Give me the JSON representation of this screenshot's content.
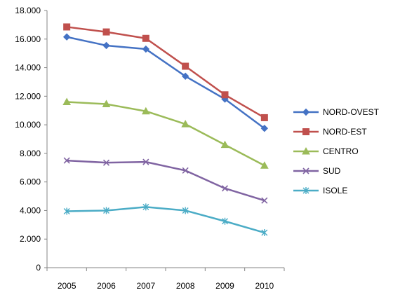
{
  "chart_data": {
    "type": "line",
    "title": "",
    "xlabel": "",
    "ylabel": "",
    "categories": [
      "2005",
      "2006",
      "2007",
      "2008",
      "2009",
      "2010"
    ],
    "ylim": [
      0,
      18000
    ],
    "ytick_step": 2000,
    "ytick_labels": [
      "0",
      "2.000",
      "4.000",
      "6.000",
      "8.000",
      "10.000",
      "12.000",
      "14.000",
      "16.000",
      "18.000"
    ],
    "grid": false,
    "legend_position": "right",
    "series": [
      {
        "name": "NORD-OVEST",
        "color": "#4472C4",
        "marker": "diamond",
        "values": [
          16150,
          15550,
          15300,
          13400,
          11800,
          9750
        ]
      },
      {
        "name": "NORD-EST",
        "color": "#C0504D",
        "marker": "square",
        "values": [
          16850,
          16500,
          16050,
          14100,
          12100,
          10500
        ]
      },
      {
        "name": "CENTRO",
        "color": "#9BBB59",
        "marker": "triangle",
        "values": [
          11600,
          11450,
          10950,
          10050,
          8600,
          7150
        ]
      },
      {
        "name": "SUD",
        "color": "#8064A2",
        "marker": "x",
        "values": [
          7500,
          7350,
          7400,
          6800,
          5550,
          4700
        ]
      },
      {
        "name": "ISOLE",
        "color": "#4BACC6",
        "marker": "star",
        "values": [
          3950,
          4000,
          4250,
          4000,
          3250,
          2450
        ]
      }
    ]
  }
}
